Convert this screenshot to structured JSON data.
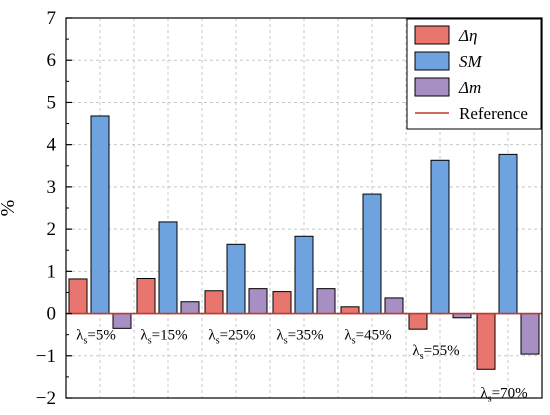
{
  "chart_data": {
    "type": "bar",
    "ylabel": "%",
    "ylim": [
      -2,
      7
    ],
    "yticks": [
      -2,
      -1,
      0,
      1,
      2,
      3,
      4,
      5,
      6,
      7
    ],
    "grid": true,
    "legend_position": "top-right",
    "categories": [
      "λs=5%",
      "λs=15%",
      "λs=25%",
      "λs=35%",
      "λs=45%",
      "λs=55%",
      "λs=70%"
    ],
    "category_labels": [
      {
        "base": "λ",
        "sub": "s",
        "rest": "=5%"
      },
      {
        "base": "λ",
        "sub": "s",
        "rest": "=15%"
      },
      {
        "base": "λ",
        "sub": "s",
        "rest": "=25%"
      },
      {
        "base": "λ",
        "sub": "s",
        "rest": "=35%"
      },
      {
        "base": "λ",
        "sub": "s",
        "rest": "=45%"
      },
      {
        "base": "λ",
        "sub": "s",
        "rest": "=55%"
      },
      {
        "base": "λ",
        "sub": "s",
        "rest": "=70%"
      }
    ],
    "series": [
      {
        "name": "Δη",
        "color": "#e8766f",
        "values": [
          0.82,
          0.83,
          0.54,
          0.52,
          0.16,
          -0.37,
          -1.32
        ]
      },
      {
        "name": "SM",
        "color": "#6fa3df",
        "values": [
          4.68,
          2.17,
          1.64,
          1.83,
          2.83,
          3.63,
          3.77
        ]
      },
      {
        "name": "Δm",
        "color": "#a78fc3",
        "values": [
          -0.35,
          0.28,
          0.59,
          0.59,
          0.37,
          -0.1,
          -0.96
        ]
      }
    ],
    "reference": {
      "name": "Reference",
      "value": 0,
      "color": "#c0392b"
    }
  }
}
